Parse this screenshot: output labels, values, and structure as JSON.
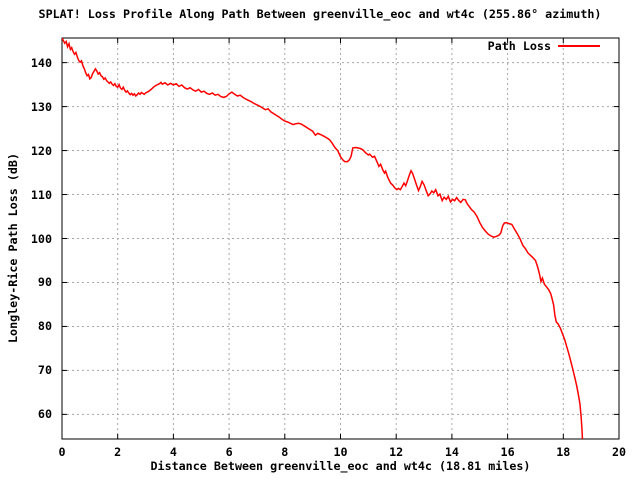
{
  "chart_data": {
    "type": "line",
    "title": "SPLAT! Loss Profile Along Path Between greenville_eoc and wt4c (255.86° azimuth)",
    "xlabel": "Distance Between greenville_eoc and wt4c (18.81 miles)",
    "ylabel": "Longley-Rice Path Loss (dB)",
    "xlim": [
      0,
      20
    ],
    "ylim": [
      54.4,
      145.6
    ],
    "x_ticks": [
      0,
      2,
      4,
      6,
      8,
      10,
      12,
      14,
      16,
      18,
      20
    ],
    "y_ticks": [
      60,
      70,
      80,
      90,
      100,
      110,
      120,
      130,
      140
    ],
    "grid": true,
    "legend": {
      "position": "top-right",
      "entries": [
        {
          "label": "Path Loss",
          "color": "#ff0000"
        }
      ]
    },
    "colors": {
      "line": "#ff0000",
      "grid": "#a8a8a8",
      "axis": "#000000",
      "background": "#ffffff"
    },
    "series": [
      {
        "name": "Path Loss",
        "color": "#ff0000",
        "points": [
          [
            0,
            145.6
          ],
          [
            0.05,
            145.0
          ],
          [
            0.1,
            144.4
          ],
          [
            0.15,
            144.8
          ],
          [
            0.2,
            143.6
          ],
          [
            0.25,
            144.3
          ],
          [
            0.3,
            143.0
          ],
          [
            0.35,
            143.4
          ],
          [
            0.4,
            142.5
          ],
          [
            0.45,
            141.9
          ],
          [
            0.5,
            142.3
          ],
          [
            0.55,
            141.3
          ],
          [
            0.6,
            140.5
          ],
          [
            0.65,
            140.1
          ],
          [
            0.7,
            140.4
          ],
          [
            0.75,
            139.3
          ],
          [
            0.8,
            138.6
          ],
          [
            0.85,
            137.7
          ],
          [
            0.9,
            137.0
          ],
          [
            0.95,
            137.3
          ],
          [
            1.0,
            136.3
          ],
          [
            1.05,
            136.6
          ],
          [
            1.1,
            137.5
          ],
          [
            1.15,
            138.0
          ],
          [
            1.2,
            138.6
          ],
          [
            1.25,
            138.1
          ],
          [
            1.3,
            137.4
          ],
          [
            1.35,
            137.7
          ],
          [
            1.4,
            137.0
          ],
          [
            1.45,
            136.8
          ],
          [
            1.5,
            136.2
          ],
          [
            1.55,
            136.5
          ],
          [
            1.6,
            135.9
          ],
          [
            1.65,
            135.6
          ],
          [
            1.7,
            135.3
          ],
          [
            1.75,
            135.6
          ],
          [
            1.8,
            135.1
          ],
          [
            1.85,
            134.8
          ],
          [
            1.9,
            135.2
          ],
          [
            1.95,
            134.6
          ],
          [
            2.0,
            134.4
          ],
          [
            2.05,
            135.0
          ],
          [
            2.1,
            134.2
          ],
          [
            2.15,
            133.9
          ],
          [
            2.2,
            134.4
          ],
          [
            2.25,
            133.7
          ],
          [
            2.3,
            133.3
          ],
          [
            2.35,
            133.6
          ],
          [
            2.4,
            133.1
          ],
          [
            2.45,
            132.7
          ],
          [
            2.5,
            133.0
          ],
          [
            2.55,
            132.6
          ],
          [
            2.6,
            132.9
          ],
          [
            2.65,
            132.4
          ],
          [
            2.7,
            132.7
          ],
          [
            2.75,
            133.1
          ],
          [
            2.8,
            132.8
          ],
          [
            2.85,
            133.2
          ],
          [
            2.9,
            133.0
          ],
          [
            2.95,
            132.8
          ],
          [
            3.0,
            133.1
          ],
          [
            3.1,
            133.4
          ],
          [
            3.2,
            133.9
          ],
          [
            3.3,
            134.5
          ],
          [
            3.4,
            134.9
          ],
          [
            3.5,
            135.2
          ],
          [
            3.55,
            135.5
          ],
          [
            3.6,
            135.1
          ],
          [
            3.7,
            135.4
          ],
          [
            3.8,
            134.9
          ],
          [
            3.9,
            135.3
          ],
          [
            4.0,
            134.9
          ],
          [
            4.1,
            135.2
          ],
          [
            4.2,
            134.6
          ],
          [
            4.3,
            134.9
          ],
          [
            4.4,
            134.3
          ],
          [
            4.5,
            134.0
          ],
          [
            4.6,
            134.3
          ],
          [
            4.7,
            133.8
          ],
          [
            4.8,
            133.5
          ],
          [
            4.9,
            133.9
          ],
          [
            5.0,
            133.3
          ],
          [
            5.1,
            133.5
          ],
          [
            5.2,
            133.0
          ],
          [
            5.3,
            132.8
          ],
          [
            5.4,
            133.1
          ],
          [
            5.5,
            132.6
          ],
          [
            5.6,
            132.8
          ],
          [
            5.7,
            132.3
          ],
          [
            5.8,
            132.1
          ],
          [
            5.9,
            132.3
          ],
          [
            6.0,
            132.9
          ],
          [
            6.1,
            133.3
          ],
          [
            6.2,
            132.8
          ],
          [
            6.3,
            132.4
          ],
          [
            6.4,
            132.6
          ],
          [
            6.5,
            132.1
          ],
          [
            6.6,
            131.7
          ],
          [
            6.7,
            131.4
          ],
          [
            6.8,
            131.1
          ],
          [
            6.9,
            130.7
          ],
          [
            7.0,
            130.4
          ],
          [
            7.1,
            130.1
          ],
          [
            7.2,
            129.7
          ],
          [
            7.3,
            129.3
          ],
          [
            7.4,
            129.5
          ],
          [
            7.5,
            128.8
          ],
          [
            7.6,
            128.4
          ],
          [
            7.7,
            128.0
          ],
          [
            7.8,
            127.6
          ],
          [
            7.9,
            127.1
          ],
          [
            8.0,
            126.7
          ],
          [
            8.1,
            126.5
          ],
          [
            8.2,
            126.2
          ],
          [
            8.3,
            125.9
          ],
          [
            8.4,
            126.1
          ],
          [
            8.5,
            126.2
          ],
          [
            8.6,
            126.0
          ],
          [
            8.75,
            125.4
          ],
          [
            8.9,
            124.8
          ],
          [
            9.0,
            124.4
          ],
          [
            9.1,
            123.5
          ],
          [
            9.18,
            123.9
          ],
          [
            9.3,
            123.6
          ],
          [
            9.45,
            123.1
          ],
          [
            9.6,
            122.5
          ],
          [
            9.7,
            121.7
          ],
          [
            9.8,
            120.7
          ],
          [
            9.9,
            120.0
          ],
          [
            10.0,
            118.6
          ],
          [
            10.08,
            117.9
          ],
          [
            10.15,
            117.5
          ],
          [
            10.25,
            117.5
          ],
          [
            10.32,
            117.9
          ],
          [
            10.38,
            118.7
          ],
          [
            10.44,
            120.6
          ],
          [
            10.55,
            120.7
          ],
          [
            10.7,
            120.5
          ],
          [
            10.8,
            120.2
          ],
          [
            10.9,
            119.5
          ],
          [
            11.0,
            119.0
          ],
          [
            11.05,
            119.2
          ],
          [
            11.15,
            118.5
          ],
          [
            11.22,
            118.7
          ],
          [
            11.3,
            117.6
          ],
          [
            11.38,
            116.4
          ],
          [
            11.44,
            116.9
          ],
          [
            11.52,
            115.6
          ],
          [
            11.58,
            114.9
          ],
          [
            11.62,
            115.3
          ],
          [
            11.7,
            113.9
          ],
          [
            11.8,
            112.6
          ],
          [
            11.88,
            112.1
          ],
          [
            11.95,
            111.5
          ],
          [
            12.02,
            111.1
          ],
          [
            12.08,
            111.4
          ],
          [
            12.15,
            111.1
          ],
          [
            12.22,
            111.9
          ],
          [
            12.28,
            112.6
          ],
          [
            12.34,
            112.0
          ],
          [
            12.4,
            113.0
          ],
          [
            12.47,
            114.4
          ],
          [
            12.53,
            115.4
          ],
          [
            12.58,
            114.9
          ],
          [
            12.65,
            113.7
          ],
          [
            12.72,
            112.3
          ],
          [
            12.8,
            110.9
          ],
          [
            12.87,
            111.9
          ],
          [
            12.93,
            113.0
          ],
          [
            13.0,
            112.2
          ],
          [
            13.07,
            111.0
          ],
          [
            13.15,
            109.7
          ],
          [
            13.22,
            110.2
          ],
          [
            13.28,
            110.8
          ],
          [
            13.35,
            110.4
          ],
          [
            13.42,
            111.1
          ],
          [
            13.5,
            109.7
          ],
          [
            13.57,
            110.1
          ],
          [
            13.65,
            108.6
          ],
          [
            13.72,
            109.4
          ],
          [
            13.8,
            108.9
          ],
          [
            13.87,
            109.6
          ],
          [
            13.95,
            108.3
          ],
          [
            14.02,
            108.9
          ],
          [
            14.1,
            108.6
          ],
          [
            14.17,
            109.3
          ],
          [
            14.25,
            108.6
          ],
          [
            14.32,
            108.2
          ],
          [
            14.4,
            108.9
          ],
          [
            14.48,
            108.8
          ],
          [
            14.55,
            107.9
          ],
          [
            14.62,
            107.3
          ],
          [
            14.7,
            106.6
          ],
          [
            14.8,
            106.0
          ],
          [
            14.9,
            105.0
          ],
          [
            15.0,
            103.6
          ],
          [
            15.1,
            102.5
          ],
          [
            15.2,
            101.7
          ],
          [
            15.3,
            101.0
          ],
          [
            15.4,
            100.6
          ],
          [
            15.5,
            100.3
          ],
          [
            15.6,
            100.5
          ],
          [
            15.7,
            100.8
          ],
          [
            15.76,
            101.3
          ],
          [
            15.82,
            102.8
          ],
          [
            15.88,
            103.5
          ],
          [
            15.95,
            103.6
          ],
          [
            16.05,
            103.4
          ],
          [
            16.15,
            103.2
          ],
          [
            16.25,
            102.1
          ],
          [
            16.35,
            101.1
          ],
          [
            16.45,
            99.9
          ],
          [
            16.55,
            98.4
          ],
          [
            16.65,
            97.6
          ],
          [
            16.72,
            96.8
          ],
          [
            16.8,
            96.3
          ],
          [
            16.9,
            95.7
          ],
          [
            17.0,
            95.0
          ],
          [
            17.08,
            93.5
          ],
          [
            17.15,
            91.8
          ],
          [
            17.2,
            90.2
          ],
          [
            17.25,
            91.0
          ],
          [
            17.32,
            89.6
          ],
          [
            17.4,
            89.0
          ],
          [
            17.48,
            88.3
          ],
          [
            17.55,
            87.4
          ],
          [
            17.6,
            86.2
          ],
          [
            17.65,
            84.9
          ],
          [
            17.7,
            82.5
          ],
          [
            17.75,
            81.0
          ],
          [
            17.82,
            80.5
          ],
          [
            17.9,
            79.5
          ],
          [
            17.98,
            78.2
          ],
          [
            18.05,
            77.0
          ],
          [
            18.12,
            75.5
          ],
          [
            18.2,
            73.7
          ],
          [
            18.28,
            71.8
          ],
          [
            18.35,
            70.1
          ],
          [
            18.42,
            68.2
          ],
          [
            18.48,
            66.5
          ],
          [
            18.54,
            64.6
          ],
          [
            18.6,
            62.3
          ],
          [
            18.64,
            59.5
          ],
          [
            18.67,
            56.5
          ],
          [
            18.69,
            54.2
          ]
        ]
      }
    ]
  }
}
